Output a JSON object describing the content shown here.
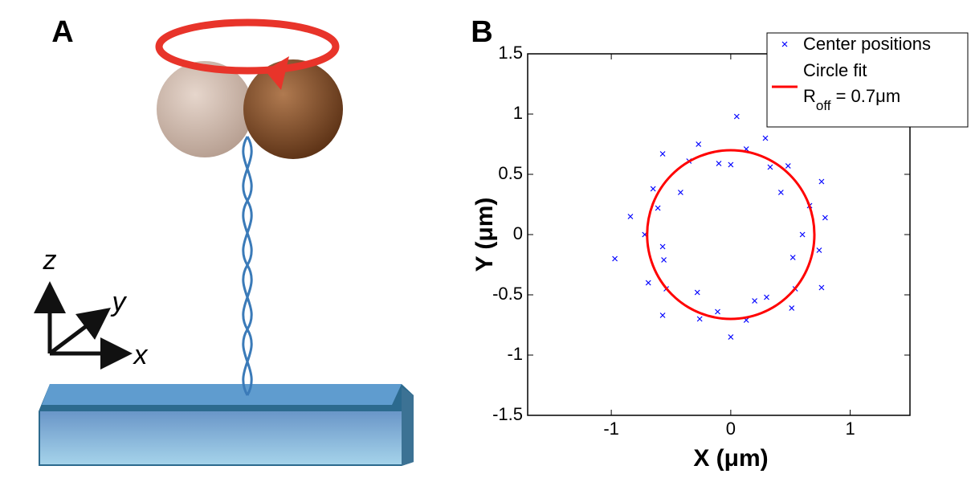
{
  "panel_a": {
    "label": "A",
    "axis_labels": [
      "z",
      "y",
      "x"
    ]
  },
  "chart_data": {
    "type": "scatter",
    "panel_label": "B",
    "x_label": "X (μm)",
    "y_label": "Y (μm)",
    "xlim": [
      -1.7,
      1.5
    ],
    "ylim": [
      -1.5,
      1.5
    ],
    "xticks": [
      -1,
      0,
      1
    ],
    "yticks": [
      -1.5,
      -1,
      -0.5,
      0,
      0.5,
      1,
      1.5
    ],
    "series": [
      {
        "name": "Center positions",
        "color": "#0000ff",
        "marker": "x",
        "x": [
          0.6,
          0.79,
          0.66,
          0.76,
          0.42,
          0.48,
          0.33,
          0.29,
          0.13,
          0,
          -0.1,
          -0.27,
          -0.35,
          -0.57,
          -0.42,
          -0.65,
          -0.61,
          -0.84,
          -0.72,
          -0.57,
          -0.56,
          -0.69,
          -0.54,
          -0.57,
          -0.28,
          -0.26,
          -0.11,
          0,
          0.13,
          0.2,
          0.3,
          0.51,
          0.54,
          0.76,
          0.52,
          0.74,
          0.05,
          -0.97
        ],
        "y": [
          0,
          0.14,
          0.24,
          0.44,
          0.35,
          0.57,
          0.56,
          0.8,
          0.71,
          0.58,
          0.59,
          0.75,
          0.61,
          0.67,
          0.35,
          0.38,
          0.22,
          0.15,
          0,
          -0.1,
          -0.21,
          -0.4,
          -0.45,
          -0.67,
          -0.48,
          -0.7,
          -0.64,
          -0.85,
          -0.71,
          -0.55,
          -0.52,
          -0.61,
          -0.45,
          -0.44,
          -0.19,
          -0.13,
          0.98,
          -0.2
        ]
      }
    ],
    "circle_fit": {
      "name": "Circle fit",
      "color": "#ff0000",
      "center": [
        0,
        0
      ],
      "radius": 0.7,
      "label": {
        "main": "R",
        "sub": "off",
        "rest": " = 0.7μm"
      }
    },
    "legend": "upper right"
  }
}
